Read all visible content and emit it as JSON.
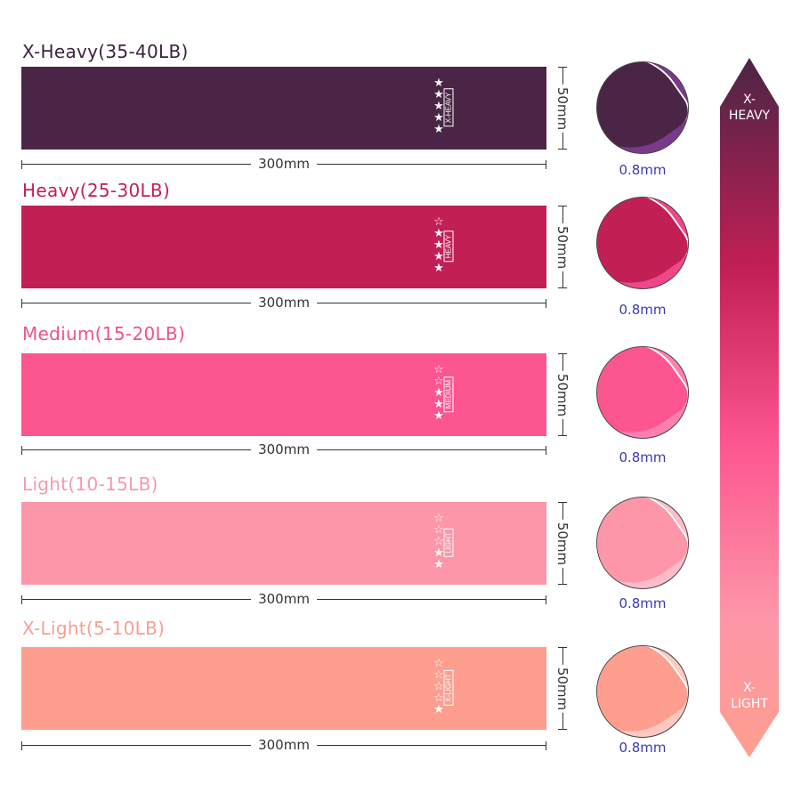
{
  "bands": [
    {
      "title": "X-Heavy(35-40LB)",
      "tag": "X-HEAVY",
      "stars_filled": 5,
      "stars_total": 5,
      "width": "300mm",
      "height": "50mm",
      "thickness": "0.8mm",
      "color": "#4a2545",
      "title_color": "#3d2340",
      "light": "#7a3a8a"
    },
    {
      "title": "Heavy(25-30LB)",
      "tag": "HEAVY",
      "stars_filled": 4,
      "stars_total": 5,
      "width": "300mm",
      "height": "50mm",
      "thickness": "0.8mm",
      "color": "#c21f55",
      "title_color": "#c21f55",
      "light": "#f0468a"
    },
    {
      "title": "Medium(15-20LB)",
      "tag": "MEDIUM",
      "stars_filled": 3,
      "stars_total": 5,
      "width": "300mm",
      "height": "50mm",
      "thickness": "0.8mm",
      "color": "#fd5590",
      "title_color": "#f2528b",
      "light": "#ff80b0"
    },
    {
      "title": "Light(10-15LB)",
      "tag": "LIGHT",
      "stars_filled": 2,
      "stars_total": 5,
      "width": "300mm",
      "height": "50mm",
      "thickness": "0.8mm",
      "color": "#fd96a8",
      "title_color": "#f59aac",
      "light": "#ffbcc8"
    },
    {
      "title": "X-Light(5-10LB)",
      "tag": "X-LIGHT",
      "stars_filled": 1,
      "stars_total": 5,
      "width": "300mm",
      "height": "50mm",
      "thickness": "0.8mm",
      "color": "#fd9e8f",
      "title_color": "#f7a090",
      "light": "#ffc8c0"
    }
  ],
  "scale": {
    "top_label": "X-\nHEAVY",
    "bottom_label": "X-\nLIGHT"
  }
}
